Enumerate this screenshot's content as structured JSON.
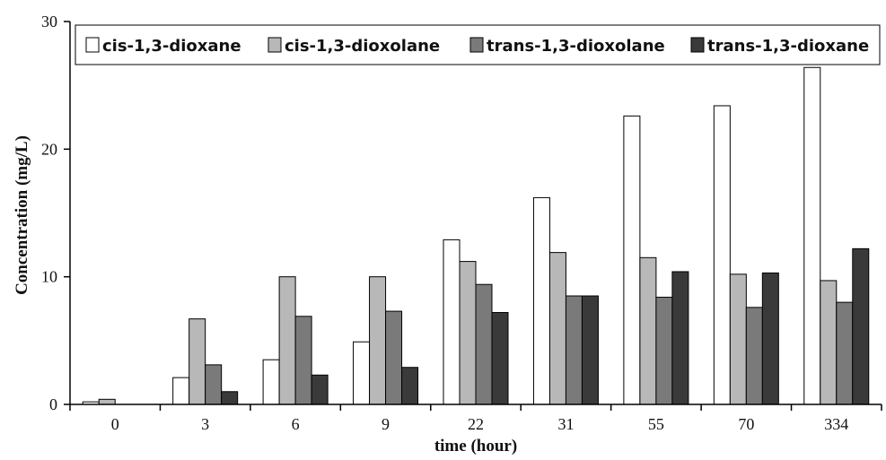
{
  "chart_data": {
    "type": "bar",
    "title": "",
    "xlabel": "time (hour)",
    "ylabel": "Concentration (mg/L)",
    "ylim": [
      0,
      30
    ],
    "yticks": [
      "0",
      "10",
      "20",
      "30"
    ],
    "categories": [
      "0",
      "3",
      "6",
      "9",
      "22",
      "31",
      "55",
      "70",
      "334"
    ],
    "legend_position": "top",
    "grid": false,
    "series": [
      {
        "name": "cis-1,3-dioxane",
        "color": "#ffffff",
        "values": [
          0.2,
          2.1,
          3.5,
          4.9,
          12.9,
          16.2,
          22.6,
          23.4,
          26.4
        ]
      },
      {
        "name": "cis-1,3-dioxolane",
        "color": "#b8b8b8",
        "values": [
          0.4,
          6.7,
          10.0,
          10.0,
          11.2,
          11.9,
          11.5,
          10.2,
          9.7
        ]
      },
      {
        "name": "trans-1,3-dioxolane",
        "color": "#7a7a7a",
        "values": [
          0.0,
          3.1,
          6.9,
          7.3,
          9.4,
          8.5,
          8.4,
          7.6,
          8.0
        ]
      },
      {
        "name": "trans-1,3-dioxane",
        "color": "#3a3a3a",
        "values": [
          0.0,
          1.0,
          2.3,
          2.9,
          7.2,
          8.5,
          10.4,
          10.3,
          12.2
        ]
      }
    ]
  }
}
